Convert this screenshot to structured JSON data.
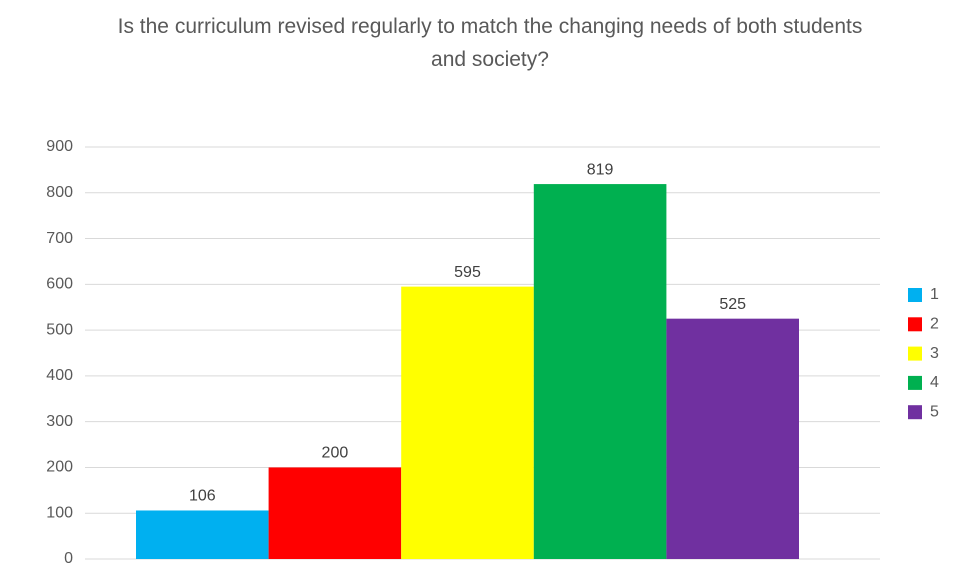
{
  "chart_data": {
    "type": "bar",
    "title": "Is the curriculum revised regularly to match the changing needs of both students and society?",
    "categories": [
      null
    ],
    "series": [
      {
        "name": "1",
        "color": "#00b0f0",
        "values": [
          106
        ]
      },
      {
        "name": "2",
        "color": "#ff0000",
        "values": [
          200
        ]
      },
      {
        "name": "3",
        "color": "#ffff00",
        "values": [
          595
        ]
      },
      {
        "name": "4",
        "color": "#00b050",
        "values": [
          819
        ]
      },
      {
        "name": "5",
        "color": "#7030a0",
        "values": [
          525
        ]
      }
    ],
    "ylim": [
      0,
      900
    ],
    "yticks": [
      0,
      100,
      200,
      300,
      400,
      500,
      600,
      700,
      800,
      900
    ],
    "grid": true,
    "legend": "right"
  }
}
